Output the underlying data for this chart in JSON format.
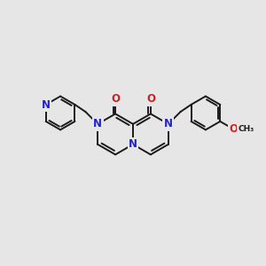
{
  "bg_color": "#e6e6e6",
  "bond_color": "#1a1a1a",
  "n_color": "#2222cc",
  "o_color": "#cc2222",
  "bond_width": 1.4,
  "font_size": 8.5,
  "fig_width": 3.0,
  "fig_height": 3.0,
  "dpi": 100,
  "xlim": [
    -0.5,
    10.5
  ],
  "ylim": [
    2.0,
    8.5
  ]
}
